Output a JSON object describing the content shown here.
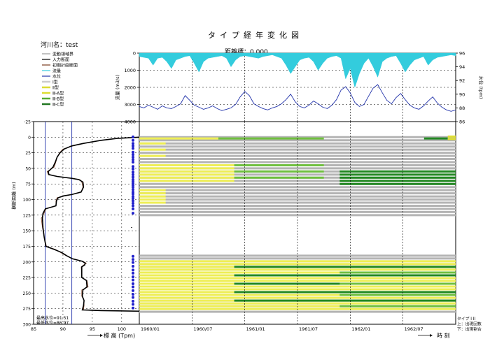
{
  "header": {
    "title": "タイプ経年変化図",
    "river_label": "河川名：test",
    "distance_label": "距離標：0.000"
  },
  "legend": {
    "items": [
      {
        "label": "変動領域界",
        "color": "#999999"
      },
      {
        "label": "入力断面",
        "color": "#000000"
      },
      {
        "label": "初期計画断面",
        "color": "#7a3b1e"
      },
      {
        "label": "流量",
        "color": "#33ccdd"
      },
      {
        "label": "水位",
        "color": "#2233aa"
      },
      {
        "label": "I型",
        "color": "#cccccc"
      },
      {
        "label": "Ⅱ型",
        "color": "#dddd33"
      },
      {
        "label": "Ⅲ-A型",
        "color": "#dddd33"
      },
      {
        "label": "Ⅲ-B型",
        "color": "#55aa33"
      },
      {
        "label": "Ⅲ-C型",
        "color": "#227722"
      }
    ]
  },
  "colors": {
    "flow": "#33ccdd",
    "water_level": "#2233aa",
    "profile": "#000000",
    "initial_profile": "#7a3b1e",
    "reference_lines": "#2233aa",
    "dots": "#2222cc",
    "type_I": "#b4b4b4",
    "type_II": "#dede33",
    "type_IIIA": "#eeee55",
    "type_IIIB": "#6fbf3f",
    "type_IIIC": "#228822"
  },
  "chart_data": [
    {
      "type": "area",
      "name_note": "top hydrograph panel",
      "x_ticks": [
        "1960/01",
        "1960/07",
        "1961/01",
        "1961/07",
        "1962/01",
        "1962/07"
      ],
      "left_axis": {
        "label": "流量 (m3/s)",
        "ylim": [
          0,
          4000
        ],
        "ticks": [
          "0",
          "1000",
          "2000",
          "3000",
          "4000"
        ]
      },
      "right_axis": {
        "label": "水位 (tpm)",
        "ylim": [
          86,
          96
        ],
        "ticks": [
          "86",
          "88",
          "90",
          "92",
          "94",
          "96"
        ]
      },
      "flow_series_note": "flow plotted downward from top (inverted)",
      "flow_values": [
        200,
        250,
        300,
        700,
        300,
        250,
        500,
        900,
        400,
        300,
        200,
        150,
        600,
        1100,
        500,
        300,
        250,
        200,
        150,
        300,
        800,
        400,
        200,
        150,
        200,
        250,
        300,
        200,
        150,
        100,
        200,
        300,
        700,
        1200,
        800,
        400,
        300,
        250,
        500,
        1000,
        600,
        300,
        200,
        150,
        300,
        1500,
        900,
        2000,
        1200,
        600,
        300,
        800,
        1400,
        500,
        300,
        200,
        150,
        600,
        1100,
        700,
        400,
        300,
        200,
        700,
        400,
        250,
        200,
        150,
        100,
        150
      ],
      "level_values": [
        88.2,
        88.0,
        88.4,
        88.1,
        87.8,
        88.3,
        88.0,
        87.9,
        88.2,
        88.6,
        89.8,
        89.1,
        88.4,
        88.1,
        87.8,
        88.0,
        88.3,
        87.9,
        87.6,
        87.8,
        88.0,
        88.5,
        89.6,
        90.4,
        89.8,
        88.6,
        88.2,
        87.9,
        87.7,
        88.0,
        88.2,
        88.6,
        89.2,
        90.0,
        88.9,
        88.2,
        88.0,
        88.4,
        89.0,
        88.6,
        88.1,
        87.9,
        88.4,
        89.2,
        90.6,
        91.1,
        90.2,
        88.8,
        88.2,
        88.5,
        89.7,
        90.9,
        91.4,
        90.2,
        89.1,
        88.6,
        89.5,
        90.1,
        89.2,
        88.4,
        88.0,
        87.8,
        88.3,
        89.0,
        89.6,
        88.7,
        88.1,
        87.7,
        87.5,
        87.7
      ]
    },
    {
      "type": "line",
      "name_note": "cross-section profile panel",
      "xlabel": "標 高 (Tpm)",
      "ylabel": "横断距離 (m)",
      "xlim": [
        85,
        103
      ],
      "ylim": [
        -25,
        300
      ],
      "x_ticks": [
        "85",
        "90",
        "95",
        "100"
      ],
      "y_ticks": [
        "-25",
        "0",
        "25",
        "50",
        "75",
        "100",
        "125",
        "150",
        "175",
        "200",
        "225",
        "250",
        "275",
        "300"
      ],
      "max_water_level_label": "最高水位=91.51",
      "min_water_level_label": "最低水位=86.97",
      "max_water_level": 91.51,
      "min_water_level": 86.97,
      "profile": [
        [
          103,
          0
        ],
        [
          99.2,
          2
        ],
        [
          96.5,
          5
        ],
        [
          93.5,
          10
        ],
        [
          91.5,
          14
        ],
        [
          90.2,
          19
        ],
        [
          89.5,
          25
        ],
        [
          89.0,
          32
        ],
        [
          88.7,
          40
        ],
        [
          88.3,
          48
        ],
        [
          87.5,
          55
        ],
        [
          87.6,
          60
        ],
        [
          89.0,
          63
        ],
        [
          91.5,
          66
        ],
        [
          92.7,
          68
        ],
        [
          93.4,
          72
        ],
        [
          93.5,
          80
        ],
        [
          93.1,
          88
        ],
        [
          91.5,
          92
        ],
        [
          90.2,
          94
        ],
        [
          89.2,
          97
        ],
        [
          88.9,
          102
        ],
        [
          88.8,
          110
        ],
        [
          87.0,
          115
        ],
        [
          86.6,
          122
        ],
        [
          86.5,
          130
        ],
        [
          86.6,
          145
        ],
        [
          86.8,
          160
        ],
        [
          87.1,
          175
        ],
        [
          88.5,
          180
        ],
        [
          89.8,
          185
        ],
        [
          90.6,
          190
        ],
        [
          91.6,
          195
        ],
        [
          93.3,
          199
        ],
        [
          93.8,
          202
        ],
        [
          93.7,
          205
        ],
        [
          93.2,
          208
        ],
        [
          93.2,
          225
        ],
        [
          94.0,
          230
        ],
        [
          94.1,
          240
        ],
        [
          93.4,
          245
        ],
        [
          93.3,
          255
        ],
        [
          93.6,
          262
        ],
        [
          93.5,
          270
        ],
        [
          93.3,
          277
        ],
        [
          96.5,
          278
        ],
        [
          103,
          279
        ]
      ],
      "dots_y": [
        -0.5,
        5,
        10,
        14,
        18,
        24,
        28,
        32,
        36,
        40,
        47,
        51,
        56,
        60,
        64,
        68,
        71,
        74,
        77,
        80,
        84,
        88,
        91,
        95,
        98,
        102,
        106,
        110,
        115,
        122,
        191,
        196,
        201,
        207,
        213,
        218,
        224,
        229,
        235,
        240,
        246,
        252,
        257,
        263,
        268,
        274
      ]
    },
    {
      "type": "bar",
      "name_note": "type change over time panel (horizontal bands per transverse position)",
      "x_ticks": [
        "1960/01",
        "1960/07",
        "1961/01",
        "1961/07",
        "1962/01",
        "1962/07"
      ],
      "row_count": 61,
      "legend_block": [
        "タイプ I II",
        "上：出現回数",
        "下：出現割合"
      ]
    }
  ],
  "axis_labels": {
    "time_axis": "時 刻",
    "arrow_elev": "標 高 (Tpm)"
  }
}
